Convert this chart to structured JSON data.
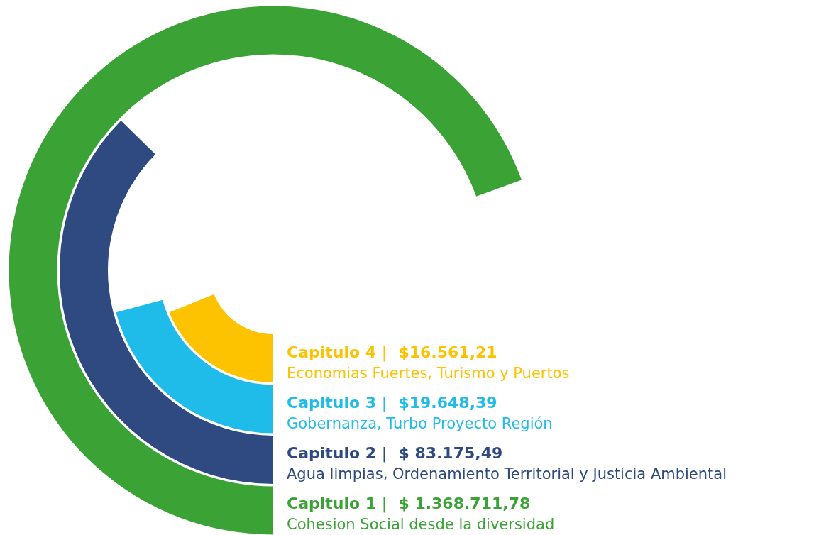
{
  "chart_data": {
    "type": "other",
    "categories": [
      "Capitulo 4  |",
      "Capitulo 3  |",
      "Capitulo 2  |",
      "Capitulo 1  |"
    ],
    "values": [
      16561.21,
      19648.39,
      83175.49,
      1368711.78
    ],
    "value_labels": [
      "$16.561,21",
      "$19.648,39",
      "$ 83.175,49",
      "$ 1.368.711,78"
    ],
    "colors": [
      "#fdc200",
      "#1fbbe9",
      "#2e4a80",
      "#3ba236"
    ],
    "annotations": [
      "Economias Fuertes, Turismo y Puertos",
      "Gobernanza, Turbo Proyecto Región",
      "Agua limpias, Ordenamiento Territorial y Justicia Ambiental",
      "Cohesion Social desde la diversidad"
    ]
  }
}
